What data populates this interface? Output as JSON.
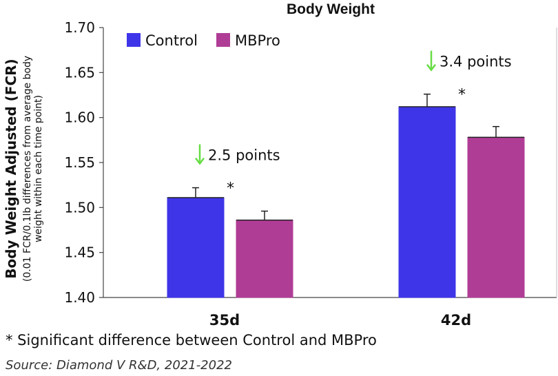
{
  "chart_data": {
    "type": "bar",
    "title": "Body Weight",
    "ylabel": "Body Weight Adjusted (FCR)",
    "ylabel_sub_line1": "(0.01 FCR/0.1lb differences from average body",
    "ylabel_sub_line2": "weight within each time point)",
    "categories": [
      "35d",
      "42d"
    ],
    "ylim": [
      1.4,
      1.7
    ],
    "yticks": [
      "1.40",
      "1.45",
      "1.50",
      "1.55",
      "1.60",
      "1.65",
      "1.70"
    ],
    "grid": false,
    "legend_position": "top-left",
    "series": [
      {
        "name": "Control",
        "color": "#3f35e8",
        "values": [
          1.511,
          1.612
        ],
        "error": [
          0.011,
          0.014
        ]
      },
      {
        "name": "MBPro",
        "color": "#b03d95",
        "values": [
          1.486,
          1.578
        ],
        "error": [
          0.01,
          0.012
        ]
      }
    ],
    "annotations": [
      {
        "category": "35d",
        "text": "2.5 points",
        "arrow": "down",
        "arrow_color": "#66dd44",
        "significance": "*"
      },
      {
        "category": "42d",
        "text": "3.4 points",
        "arrow": "down",
        "arrow_color": "#66dd44",
        "significance": "*"
      }
    ]
  },
  "footnote": "* Significant difference between Control and MBPro",
  "source": "Source: Diamond V R&D, 2021-2022"
}
